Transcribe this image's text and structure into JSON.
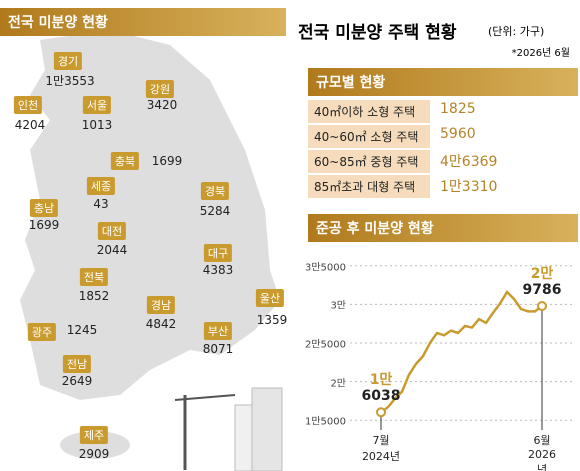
{
  "map": {
    "title": "전국 미분양 현황",
    "regions": [
      {
        "name": "경기",
        "value": "1만3553"
      },
      {
        "name": "강원",
        "value": "3420"
      },
      {
        "name": "인천",
        "value": "4204"
      },
      {
        "name": "서울",
        "value": "1013"
      },
      {
        "name": "충북",
        "value": "1699"
      },
      {
        "name": "세종",
        "value": "43"
      },
      {
        "name": "충남",
        "value": "1699"
      },
      {
        "name": "경북",
        "value": "5284"
      },
      {
        "name": "대전",
        "value": "2044"
      },
      {
        "name": "대구",
        "value": "4383"
      },
      {
        "name": "전북",
        "value": "1852"
      },
      {
        "name": "경남",
        "value": "4842"
      },
      {
        "name": "울산",
        "value": "1359"
      },
      {
        "name": "광주",
        "value": "1245"
      },
      {
        "name": "부산",
        "value": "8071"
      },
      {
        "name": "전남",
        "value": "2649"
      },
      {
        "name": "제주",
        "value": "2909"
      }
    ]
  },
  "header": {
    "title": "전국 미분양 주택 현황",
    "unit": "(단위: 가구)",
    "date": "*2026년 6월"
  },
  "size_table": {
    "title": "규모별 현황",
    "rows": [
      {
        "label": "40㎡이하 소형 주택",
        "value": "1825"
      },
      {
        "label": "40~60㎡ 소형 주택",
        "value": "5960"
      },
      {
        "label": "60~85㎡ 중형 주택",
        "value": "4만6369"
      },
      {
        "label": "85㎡초과 대형 주택",
        "value": "1만3310"
      }
    ]
  },
  "chart_data": {
    "type": "line",
    "title": "준공 후 미분양 현황",
    "categories": [
      "7월\n2024년",
      null,
      null,
      null,
      null,
      null,
      null,
      null,
      null,
      null,
      null,
      null,
      null,
      null,
      null,
      null,
      null,
      null,
      null,
      null,
      null,
      null,
      null,
      "6월\n2026년"
    ],
    "values": [
      16038,
      16700,
      17800,
      18700,
      20900,
      22300,
      23300,
      25000,
      26300,
      26000,
      26600,
      26300,
      27200,
      27000,
      28100,
      27600,
      28900,
      30100,
      31600,
      30700,
      29400,
      29100,
      29100,
      29786
    ],
    "value_labels": [
      "1만\n6038",
      null,
      null,
      null,
      null,
      null,
      null,
      null,
      null,
      null,
      null,
      null,
      null,
      null,
      null,
      null,
      null,
      null,
      null,
      null,
      null,
      null,
      null,
      "2만\n9786"
    ],
    "color": "#c99a2e",
    "ylim": [
      14000,
      36000
    ],
    "yticks": [
      {
        "value": 15000,
        "label": "1만5000"
      },
      {
        "value": 20000,
        "label": "2만"
      },
      {
        "value": 25000,
        "label": "2만5000"
      },
      {
        "value": 30000,
        "label": "3만"
      },
      {
        "value": 35000,
        "label": "3만5000"
      }
    ],
    "grid": true
  }
}
